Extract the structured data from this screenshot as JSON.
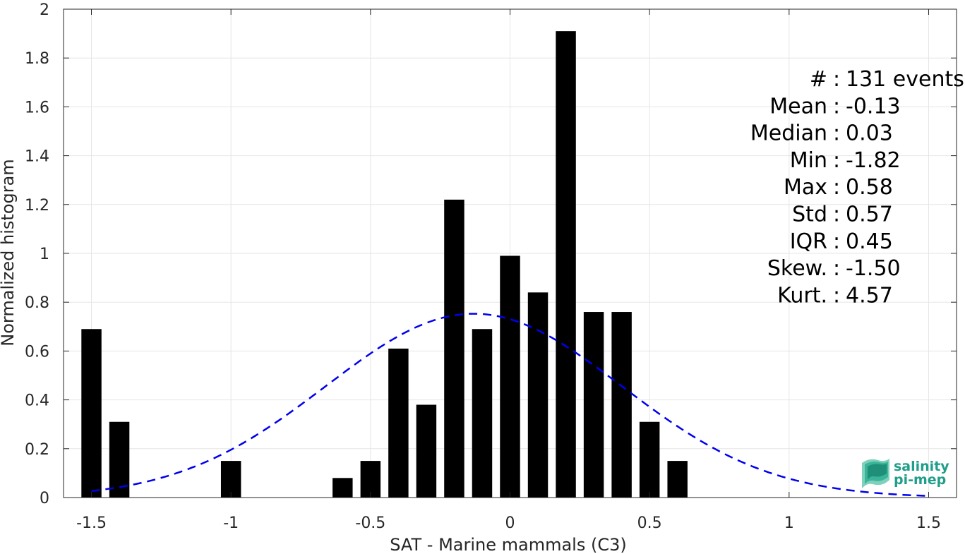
{
  "chart_data": {
    "type": "bar",
    "xlabel": "SAT - Marine mammals (C3)",
    "ylabel": "Normalized histogram",
    "xlim": [
      -1.6,
      1.6
    ],
    "ylim": [
      0,
      2
    ],
    "grid": true,
    "x_ticks": [
      -1.5,
      -1,
      -0.5,
      0,
      0.5,
      1,
      1.5
    ],
    "x_tick_labels": [
      "-1.5",
      "-1",
      "-0.5",
      "0",
      "0.5",
      "1",
      "1.5"
    ],
    "y_ticks": [
      0,
      0.2,
      0.4,
      0.6,
      0.8,
      1,
      1.2,
      1.4,
      1.6,
      1.8,
      2
    ],
    "y_tick_labels": [
      "0",
      "0.2",
      "0.4",
      "0.6",
      "0.8",
      "1",
      "1.2",
      "1.4",
      "1.6",
      "1.8",
      "2"
    ],
    "bar_color": "#000000",
    "bins": [
      {
        "x": -1.5,
        "value": 0.69
      },
      {
        "x": -1.4,
        "value": 0.31
      },
      {
        "x": -1.0,
        "value": 0.15
      },
      {
        "x": -0.6,
        "value": 0.08
      },
      {
        "x": -0.5,
        "value": 0.15
      },
      {
        "x": -0.4,
        "value": 0.61
      },
      {
        "x": -0.3,
        "value": 0.38
      },
      {
        "x": -0.2,
        "value": 1.22
      },
      {
        "x": -0.1,
        "value": 0.69
      },
      {
        "x": 0.0,
        "value": 0.99
      },
      {
        "x": 0.1,
        "value": 0.84
      },
      {
        "x": 0.2,
        "value": 1.91
      },
      {
        "x": 0.3,
        "value": 0.76
      },
      {
        "x": 0.4,
        "value": 0.76
      },
      {
        "x": 0.5,
        "value": 0.31
      },
      {
        "x": 0.6,
        "value": 0.15
      }
    ],
    "fit_curve": {
      "style": "dashed",
      "color": "#0000ee",
      "mean": -0.13,
      "std": 0.53,
      "x_range": [
        -1.5,
        1.5
      ]
    },
    "stats": [
      {
        "key": "#  ",
        "sep": " : ",
        "value": "131 events"
      },
      {
        "key": "Mean",
        "sep": " : ",
        "value": "-0.13"
      },
      {
        "key": "Median",
        "sep": " : ",
        "value": "0.03"
      },
      {
        "key": "Min",
        "sep": " : ",
        "value": "-1.82"
      },
      {
        "key": "Max",
        "sep": " : ",
        "value": "0.58"
      },
      {
        "key": "Std",
        "sep": " : ",
        "value": "0.57"
      },
      {
        "key": "IQR",
        "sep": " : ",
        "value": "0.45"
      },
      {
        "key": "Skew.",
        "sep": " : ",
        "value": "-1.50"
      },
      {
        "key": "Kurt.",
        "sep": " : ",
        "value": "4.57"
      }
    ]
  },
  "logo": {
    "line1": "salinity",
    "line2": "pi-mep",
    "color": "#1f9e89"
  }
}
